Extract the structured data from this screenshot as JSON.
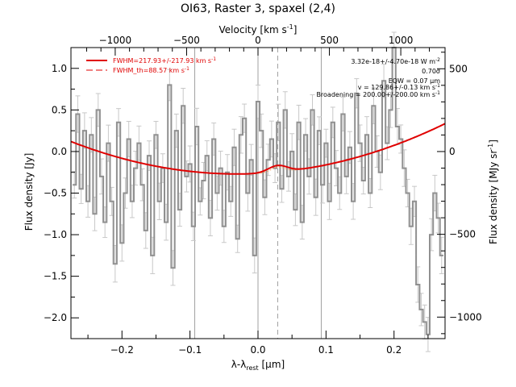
{
  "chart_data": {
    "type": "line",
    "title": "OI63, Raster 3, spaxel (2,4)",
    "xlabel": "λ-λ",
    "xlabel_sub": "rest",
    "xlabel_unit": " [μm]",
    "ylabel": "Flux density [Jy]",
    "top_axis_label": "Velocity [km s",
    "top_axis_label_sup": "-1",
    "top_axis_label_end": "]",
    "right_axis_label": "Flux density [MJy sr",
    "right_axis_label_sup": "-1",
    "right_axis_label_end": "]",
    "xlim": [
      -0.275,
      0.275
    ],
    "ylim": [
      -2.25,
      1.25
    ],
    "top_xlim": [
      -1310,
      1310
    ],
    "right_ylim": [
      -1130,
      628
    ],
    "x_ticks": [
      -0.2,
      -0.1,
      0.0,
      0.1,
      0.2
    ],
    "x_tick_labels": [
      "−0.2",
      "−0.1",
      "0.0",
      "0.1",
      "0.2"
    ],
    "y_ticks": [
      -2.0,
      -1.5,
      -1.0,
      -0.5,
      0.0,
      0.5,
      1.0
    ],
    "y_tick_labels": [
      "−2.0",
      "−1.5",
      "−1.0",
      "−0.5",
      "0.0",
      "0.5",
      "1.0"
    ],
    "top_ticks": [
      -1000,
      -500,
      0,
      500,
      1000
    ],
    "top_tick_labels": [
      "−1000",
      "−500",
      "0",
      "500",
      "1000"
    ],
    "right_ticks": [
      500,
      0,
      -500,
      -1000
    ],
    "right_tick_labels": [
      "500",
      "0",
      "−500",
      "−1000"
    ],
    "vertical_lines": [
      -0.093,
      0.0,
      0.093
    ],
    "dashed_line_x": 0.029,
    "annotations": [
      "3.32e-18+/-4.70e-18 W m",
      "0.70σ",
      "EQW     = 0.07 μm",
      "v = 129.86+/-0.13 km s",
      "Broadening = 200.00+/-200.00 km s"
    ],
    "annotation_sups": [
      "-2",
      "",
      "",
      "-1",
      "-1"
    ],
    "legend": [
      {
        "label": "FWHM=217.93+/-217.93 km s",
        "sup": "-1",
        "style": "solid"
      },
      {
        "label": "FWHM_th=88.57 km s",
        "sup": "-1",
        "style": "dashed"
      }
    ],
    "series": [
      {
        "name": "spectrum",
        "x": [
          -0.27,
          -0.265,
          -0.26,
          -0.255,
          -0.25,
          -0.245,
          -0.24,
          -0.235,
          -0.23,
          -0.225,
          -0.22,
          -0.215,
          -0.21,
          -0.205,
          -0.2,
          -0.195,
          -0.19,
          -0.185,
          -0.18,
          -0.175,
          -0.17,
          -0.165,
          -0.16,
          -0.155,
          -0.15,
          -0.145,
          -0.14,
          -0.135,
          -0.13,
          -0.125,
          -0.12,
          -0.115,
          -0.11,
          -0.105,
          -0.1,
          -0.095,
          -0.09,
          -0.085,
          -0.08,
          -0.075,
          -0.07,
          -0.065,
          -0.06,
          -0.055,
          -0.05,
          -0.045,
          -0.04,
          -0.035,
          -0.03,
          -0.025,
          -0.02,
          -0.015,
          -0.01,
          -0.005,
          0.0,
          0.005,
          0.01,
          0.015,
          0.02,
          0.025,
          0.03,
          0.035,
          0.04,
          0.045,
          0.05,
          0.055,
          0.06,
          0.065,
          0.07,
          0.075,
          0.08,
          0.085,
          0.09,
          0.095,
          0.1,
          0.105,
          0.11,
          0.115,
          0.12,
          0.125,
          0.13,
          0.135,
          0.14,
          0.145,
          0.15,
          0.155,
          0.16,
          0.165,
          0.17,
          0.175,
          0.18,
          0.185,
          0.19,
          0.195,
          0.2,
          0.205,
          0.21,
          0.215,
          0.22,
          0.225,
          0.23,
          0.235,
          0.24,
          0.245,
          0.25,
          0.255,
          0.26,
          0.265,
          0.27
        ],
        "y": [
          -0.4,
          0.45,
          -0.45,
          0.25,
          -0.6,
          0.2,
          -0.75,
          0.5,
          -0.3,
          -0.85,
          0.1,
          -0.6,
          -1.35,
          0.35,
          -1.1,
          -0.5,
          0.15,
          -0.6,
          -0.2,
          0.1,
          -0.4,
          -0.95,
          -0.05,
          -1.25,
          0.2,
          -0.6,
          -0.2,
          -0.85,
          0.8,
          -1.4,
          0.25,
          -0.7,
          0.55,
          -0.3,
          -0.15,
          -0.9,
          0.3,
          -0.6,
          -0.35,
          -0.05,
          -0.8,
          0.15,
          -0.5,
          -0.2,
          -0.9,
          -0.25,
          -0.6,
          0.05,
          -1.05,
          0.2,
          0.4,
          -0.5,
          -0.1,
          -1.25,
          0.6,
          0.25,
          -0.55,
          -0.1,
          0.15,
          -0.2,
          0.35,
          -0.45,
          0.5,
          -0.3,
          0.0,
          -0.7,
          0.35,
          -0.85,
          0.2,
          -0.3,
          0.5,
          -0.55,
          0.25,
          -0.4,
          0.1,
          -0.6,
          0.35,
          -0.2,
          -0.5,
          0.45,
          -0.3,
          0.05,
          -0.6,
          0.7,
          0.1,
          -0.35,
          0.2,
          -0.5,
          0.55,
          0.0,
          -0.25,
          0.85,
          0.1,
          0.5,
          1.25,
          0.3,
          0.15,
          -0.2,
          -0.5,
          -0.9,
          -0.6,
          -1.6,
          -1.9,
          -2.05,
          -2.2,
          -1.0,
          -0.5,
          -0.8,
          -1.25
        ]
      }
    ],
    "model_baseline": {
      "x0": -0.275,
      "x1": 0.275,
      "y_at_vertex": -0.27,
      "vertex_x": -0.03,
      "curvature": 6.5
    },
    "model_line": {
      "center": 0.029,
      "amplitude": 0.08,
      "sigma": 0.014
    },
    "colors": {
      "spectrum": "#909090",
      "errorbar": "#c8c8c8",
      "model": "#e00000",
      "thermal": "#f4a460",
      "vline": "#a0a0a0",
      "axes": "#000000"
    }
  }
}
